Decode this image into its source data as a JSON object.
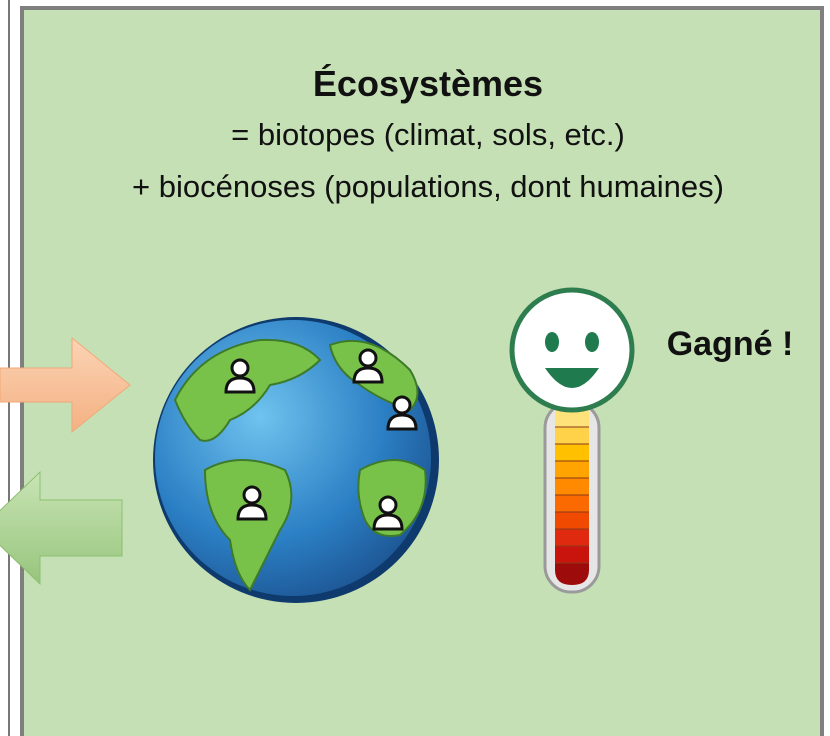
{
  "header": {
    "title": "Écosystèmes",
    "lines": [
      "= biotopes (climat, sols, etc.)",
      "+ biocénoses (populations, dont humaines)"
    ]
  },
  "status": "Gagné !"
}
